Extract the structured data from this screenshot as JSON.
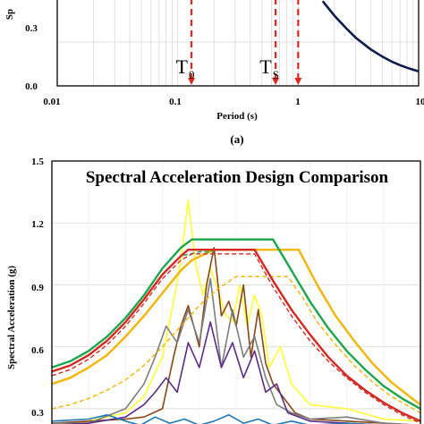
{
  "panel_a_label": "(a)",
  "chart_data": [
    {
      "type": "line",
      "xscale": "log",
      "xlim": [
        0.01,
        10
      ],
      "ylim": [
        0.0,
        0.6
      ],
      "x_ticks": [
        "0.01",
        "0.1",
        "1",
        "10"
      ],
      "y_ticks": [
        "0.0",
        "0.3"
      ],
      "xlabel": "Period (s)",
      "ylabel": "Sp",
      "grid": true,
      "markers": [
        {
          "name_main": "T",
          "name_sub": "0",
          "x": 0.13
        },
        {
          "name_main": "T",
          "name_sub": "S",
          "x": 0.65
        }
      ],
      "marker_line_x": [
        0.13,
        0.65,
        1.0
      ],
      "series": [
        {
          "color": "#0d1b4c",
          "x": [
            1.6,
            2,
            2.5,
            3,
            4,
            5,
            6,
            7,
            8,
            9,
            10
          ],
          "y": [
            0.58,
            0.48,
            0.395,
            0.33,
            0.25,
            0.2,
            0.165,
            0.142,
            0.124,
            0.111,
            0.1
          ]
        }
      ]
    },
    {
      "type": "line",
      "title": "Spectral Acceleration Design Comparison",
      "ylabel": "Spectral Acceleration (g)",
      "ylim": [
        0.2,
        1.5
      ],
      "y_ticks": [
        "1.5",
        "1.2",
        "0.9",
        "0.6",
        "0.3"
      ],
      "grid": true,
      "series": [
        {
          "color": "#1aa64a",
          "dash": false,
          "x": [
            0.0,
            0.05,
            0.1,
            0.15,
            0.2,
            0.25,
            0.3,
            0.35,
            0.38,
            0.44,
            0.6,
            0.65,
            0.7,
            0.75,
            0.8,
            0.85,
            0.9,
            0.95,
            1.0
          ],
          "y": [
            0.5,
            0.53,
            0.58,
            0.65,
            0.74,
            0.85,
            0.98,
            1.08,
            1.12,
            1.12,
            1.12,
            0.97,
            0.82,
            0.69,
            0.58,
            0.49,
            0.41,
            0.35,
            0.3
          ]
        },
        {
          "color": "#d7261f",
          "dash": false,
          "x": [
            0.0,
            0.05,
            0.1,
            0.15,
            0.2,
            0.25,
            0.3,
            0.35,
            0.37,
            0.44,
            0.55,
            0.6,
            0.65,
            0.7,
            0.75,
            0.8,
            0.85,
            0.9,
            0.95,
            1.0
          ],
          "y": [
            0.48,
            0.51,
            0.56,
            0.63,
            0.72,
            0.83,
            0.95,
            1.04,
            1.07,
            1.07,
            1.07,
            0.92,
            0.78,
            0.66,
            0.55,
            0.46,
            0.39,
            0.33,
            0.28,
            0.24
          ]
        },
        {
          "color": "#d7261f",
          "dash": true,
          "x": [
            0.0,
            0.05,
            0.1,
            0.15,
            0.2,
            0.25,
            0.3,
            0.35,
            0.38,
            0.44,
            0.55,
            0.6,
            0.65,
            0.7,
            0.75,
            0.8,
            0.85,
            0.9,
            0.95,
            1.0
          ],
          "y": [
            0.46,
            0.49,
            0.54,
            0.61,
            0.7,
            0.81,
            0.93,
            1.02,
            1.05,
            1.05,
            1.05,
            0.89,
            0.75,
            0.63,
            0.53,
            0.45,
            0.38,
            0.32,
            0.27,
            0.23
          ]
        },
        {
          "color": "#1aa64a",
          "dash": true,
          "x": [
            0.0,
            0.05,
            0.1,
            0.15,
            0.2,
            0.25,
            0.3,
            0.35,
            0.4,
            0.44
          ],
          "y": [
            0.48,
            0.51,
            0.56,
            0.63,
            0.72,
            0.83,
            0.95,
            1.04,
            1.06,
            1.06
          ]
        },
        {
          "color": "#f4b400",
          "dash": false,
          "x": [
            0.0,
            0.05,
            0.1,
            0.15,
            0.2,
            0.25,
            0.3,
            0.35,
            0.38,
            0.44,
            0.55,
            0.65,
            0.67,
            0.72,
            0.77,
            0.82,
            0.87,
            0.92,
            0.97,
            1.0
          ],
          "y": [
            0.42,
            0.45,
            0.5,
            0.56,
            0.65,
            0.75,
            0.86,
            0.97,
            1.02,
            1.07,
            1.07,
            1.07,
            1.07,
            0.9,
            0.75,
            0.63,
            0.52,
            0.43,
            0.36,
            0.32
          ]
        },
        {
          "color": "#f4b400",
          "dash": true,
          "x": [
            0.0,
            0.05,
            0.1,
            0.15,
            0.2,
            0.25,
            0.3,
            0.35,
            0.4,
            0.45,
            0.5,
            0.56,
            0.6,
            0.64,
            0.68,
            0.72,
            0.77,
            0.82,
            0.87,
            0.92,
            0.97,
            1.0
          ],
          "y": [
            0.3,
            0.32,
            0.35,
            0.39,
            0.44,
            0.51,
            0.6,
            0.7,
            0.8,
            0.88,
            0.94,
            0.94,
            0.94,
            0.94,
            0.84,
            0.72,
            0.61,
            0.51,
            0.43,
            0.36,
            0.31,
            0.28
          ]
        },
        {
          "color": "#ffff33",
          "dash": false,
          "x": [
            0.0,
            0.1,
            0.2,
            0.25,
            0.3,
            0.33,
            0.35,
            0.37,
            0.39,
            0.41,
            0.43,
            0.45,
            0.47,
            0.49,
            0.51,
            0.53,
            0.55,
            0.57,
            0.59,
            0.62,
            0.65,
            0.7,
            0.8,
            0.9,
            1.0
          ],
          "y": [
            0.22,
            0.24,
            0.28,
            0.36,
            0.55,
            0.82,
            1.02,
            1.31,
            1.0,
            0.85,
            0.98,
            0.88,
            0.76,
            0.72,
            0.9,
            0.7,
            0.85,
            0.75,
            0.5,
            0.6,
            0.42,
            0.32,
            0.3,
            0.25,
            0.24
          ]
        },
        {
          "color": "#8b4513",
          "dash": false,
          "x": [
            0.0,
            0.1,
            0.2,
            0.25,
            0.3,
            0.33,
            0.35,
            0.37,
            0.4,
            0.42,
            0.44,
            0.46,
            0.48,
            0.5,
            0.52,
            0.54,
            0.56,
            0.58,
            0.6,
            0.63,
            0.66,
            0.7,
            0.8,
            0.9,
            1.0
          ],
          "y": [
            0.23,
            0.24,
            0.25,
            0.26,
            0.3,
            0.55,
            0.7,
            0.8,
            0.6,
            0.9,
            1.08,
            0.75,
            0.82,
            0.7,
            0.9,
            0.55,
            0.78,
            0.52,
            0.42,
            0.35,
            0.28,
            0.25,
            0.24,
            0.23,
            0.22
          ]
        },
        {
          "color": "#7d7d7d",
          "dash": false,
          "x": [
            0.0,
            0.1,
            0.2,
            0.25,
            0.28,
            0.31,
            0.34,
            0.37,
            0.4,
            0.43,
            0.46,
            0.49,
            0.52,
            0.55,
            0.58,
            0.61,
            0.65,
            0.7,
            0.8,
            0.9,
            1.0
          ],
          "y": [
            0.23,
            0.23,
            0.3,
            0.42,
            0.55,
            0.7,
            0.62,
            0.78,
            0.62,
            0.93,
            0.5,
            0.78,
            0.55,
            0.65,
            0.45,
            0.32,
            0.28,
            0.25,
            0.26,
            0.23,
            0.22
          ]
        },
        {
          "color": "#5a2a8a",
          "dash": false,
          "x": [
            0.0,
            0.1,
            0.2,
            0.25,
            0.28,
            0.31,
            0.34,
            0.37,
            0.4,
            0.43,
            0.46,
            0.49,
            0.52,
            0.55,
            0.58,
            0.61,
            0.64,
            0.7,
            0.8,
            0.9,
            1.0
          ],
          "y": [
            0.22,
            0.23,
            0.26,
            0.32,
            0.38,
            0.45,
            0.38,
            0.62,
            0.5,
            0.72,
            0.5,
            0.62,
            0.45,
            0.58,
            0.38,
            0.42,
            0.28,
            0.24,
            0.23,
            0.22,
            0.22
          ]
        },
        {
          "color": "#1f77b4",
          "dash": false,
          "x": [
            0.0,
            0.1,
            0.15,
            0.2,
            0.24,
            0.28,
            0.32,
            0.36,
            0.4,
            0.44,
            0.48,
            0.52,
            0.56,
            0.6,
            0.65,
            0.7,
            0.8,
            0.9,
            1.0
          ],
          "y": [
            0.24,
            0.25,
            0.27,
            0.24,
            0.22,
            0.26,
            0.23,
            0.25,
            0.22,
            0.24,
            0.27,
            0.23,
            0.25,
            0.22,
            0.24,
            0.22,
            0.23,
            0.22,
            0.22
          ]
        }
      ]
    }
  ]
}
